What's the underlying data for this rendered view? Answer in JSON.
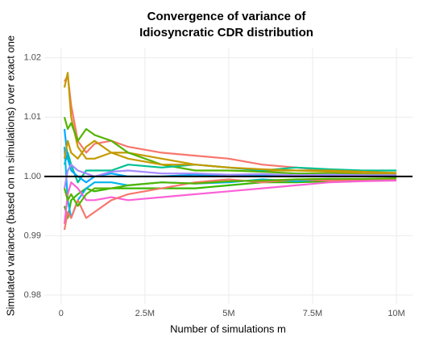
{
  "chart_data": {
    "type": "line",
    "title": [
      "Convergence of variance of",
      "Idiosyncratic CDR distribution"
    ],
    "x_label": "Number of simulations m",
    "y_label": "Simulated variance (based on m simulations) over exact one",
    "x": [
      100000,
      200000,
      300000,
      500000,
      750000,
      1000000,
      1500000,
      2000000,
      3000000,
      4000000,
      5000000,
      6000000,
      7000000,
      8000000,
      9000000,
      10000000
    ],
    "series": [
      {
        "color": "#F8766D",
        "values": [
          1.016,
          1.017,
          1.012,
          1.006,
          1.004,
          1.0055,
          1.006,
          1.005,
          1.004,
          1.0035,
          1.003,
          1.002,
          1.0015,
          1.001,
          1.0008,
          1.0005
        ]
      },
      {
        "color": "#C49A00",
        "values": [
          1.015,
          1.0175,
          1.01,
          1.005,
          1.003,
          1.003,
          1.004,
          1.004,
          1.003,
          1.002,
          1.0015,
          1.001,
          1.001,
          1.0008,
          1.0005,
          1.0004
        ]
      },
      {
        "color": "#53B400",
        "values": [
          1.01,
          1.008,
          1.009,
          1.006,
          1.008,
          1.007,
          1.006,
          1.004,
          1.002,
          1.001,
          1.001,
          1.0008,
          1.0005,
          1.0005,
          1.0003,
          1.0002
        ]
      },
      {
        "color": "#39B600",
        "values": [
          0.995,
          0.993,
          0.996,
          0.997,
          0.998,
          0.9975,
          0.998,
          0.998,
          0.998,
          0.998,
          0.9985,
          0.999,
          0.999,
          0.9992,
          0.9993,
          0.9995
        ]
      },
      {
        "color": "#00C094",
        "values": [
          1.002,
          1.004,
          1.002,
          0.999,
          1.001,
          1.001,
          1.001,
          1.002,
          1.0015,
          1.002,
          1.0015,
          1.001,
          1.0015,
          1.0012,
          1.001,
          1.001
        ]
      },
      {
        "color": "#00B6EB",
        "values": [
          1.005,
          0.996,
          0.993,
          0.996,
          0.998,
          0.999,
          0.999,
          0.9985,
          0.999,
          0.9988,
          0.999,
          0.9995,
          0.9992,
          0.9995,
          0.9995,
          0.9996
        ]
      },
      {
        "color": "#00A9FF",
        "values": [
          1.008,
          1.003,
          1.001,
          1.0,
          0.999,
          1.0,
          1.0005,
          1.0,
          1.0,
          1.0003,
          1.0,
          1.0002,
          1.0,
          1.0001,
          1.0001,
          1.0
        ]
      },
      {
        "color": "#A58AFF",
        "values": [
          0.998,
          1.001,
          1.002,
          1.001,
          1.0005,
          1.0,
          1.0008,
          1.001,
          1.0005,
          1.0005,
          1.0003,
          1.0004,
          1.0002,
          1.0003,
          1.0002,
          1.0002
        ]
      },
      {
        "color": "#FB61D7",
        "values": [
          0.992,
          0.997,
          0.999,
          0.998,
          0.996,
          0.996,
          0.9965,
          0.996,
          0.9965,
          0.997,
          0.9975,
          0.998,
          0.9985,
          0.999,
          0.9992,
          0.9993
        ]
      },
      {
        "color": "#F8766D",
        "values": [
          0.991,
          0.994,
          0.993,
          0.996,
          0.993,
          0.994,
          0.996,
          0.997,
          0.998,
          0.999,
          0.9995,
          0.999,
          0.9995,
          0.9993,
          0.9995,
          0.9996
        ]
      },
      {
        "color": "#C49A00",
        "values": [
          1.003,
          1.006,
          1.004,
          1.003,
          1.005,
          1.006,
          1.004,
          1.003,
          1.002,
          1.002,
          1.0015,
          1.0012,
          1.001,
          1.001,
          1.0008,
          1.0006
        ]
      },
      {
        "color": "#53B400",
        "values": [
          0.998,
          0.996,
          0.997,
          0.995,
          0.997,
          0.998,
          0.998,
          0.9985,
          0.999,
          0.9988,
          0.9992,
          0.9993,
          0.9995,
          0.9996,
          0.9996,
          0.9997
        ]
      }
    ],
    "xlim": [
      -500000,
      10480000
    ],
    "ylim": [
      0.9785,
      1.0216
    ],
    "xticks": [
      0,
      {
        "value": 2500000,
        "label": "2.5M"
      },
      {
        "value": 5000000,
        "label": "5M"
      },
      {
        "value": 7500000,
        "label": "7.5M"
      },
      {
        "value": 10000000,
        "label": "10M"
      }
    ],
    "yticks": [
      0.98,
      0.99,
      {
        "value": 1,
        "label": "1.00"
      },
      1.01,
      1.02
    ],
    "hline": 1,
    "hline_color": "#000000",
    "grid": true
  }
}
